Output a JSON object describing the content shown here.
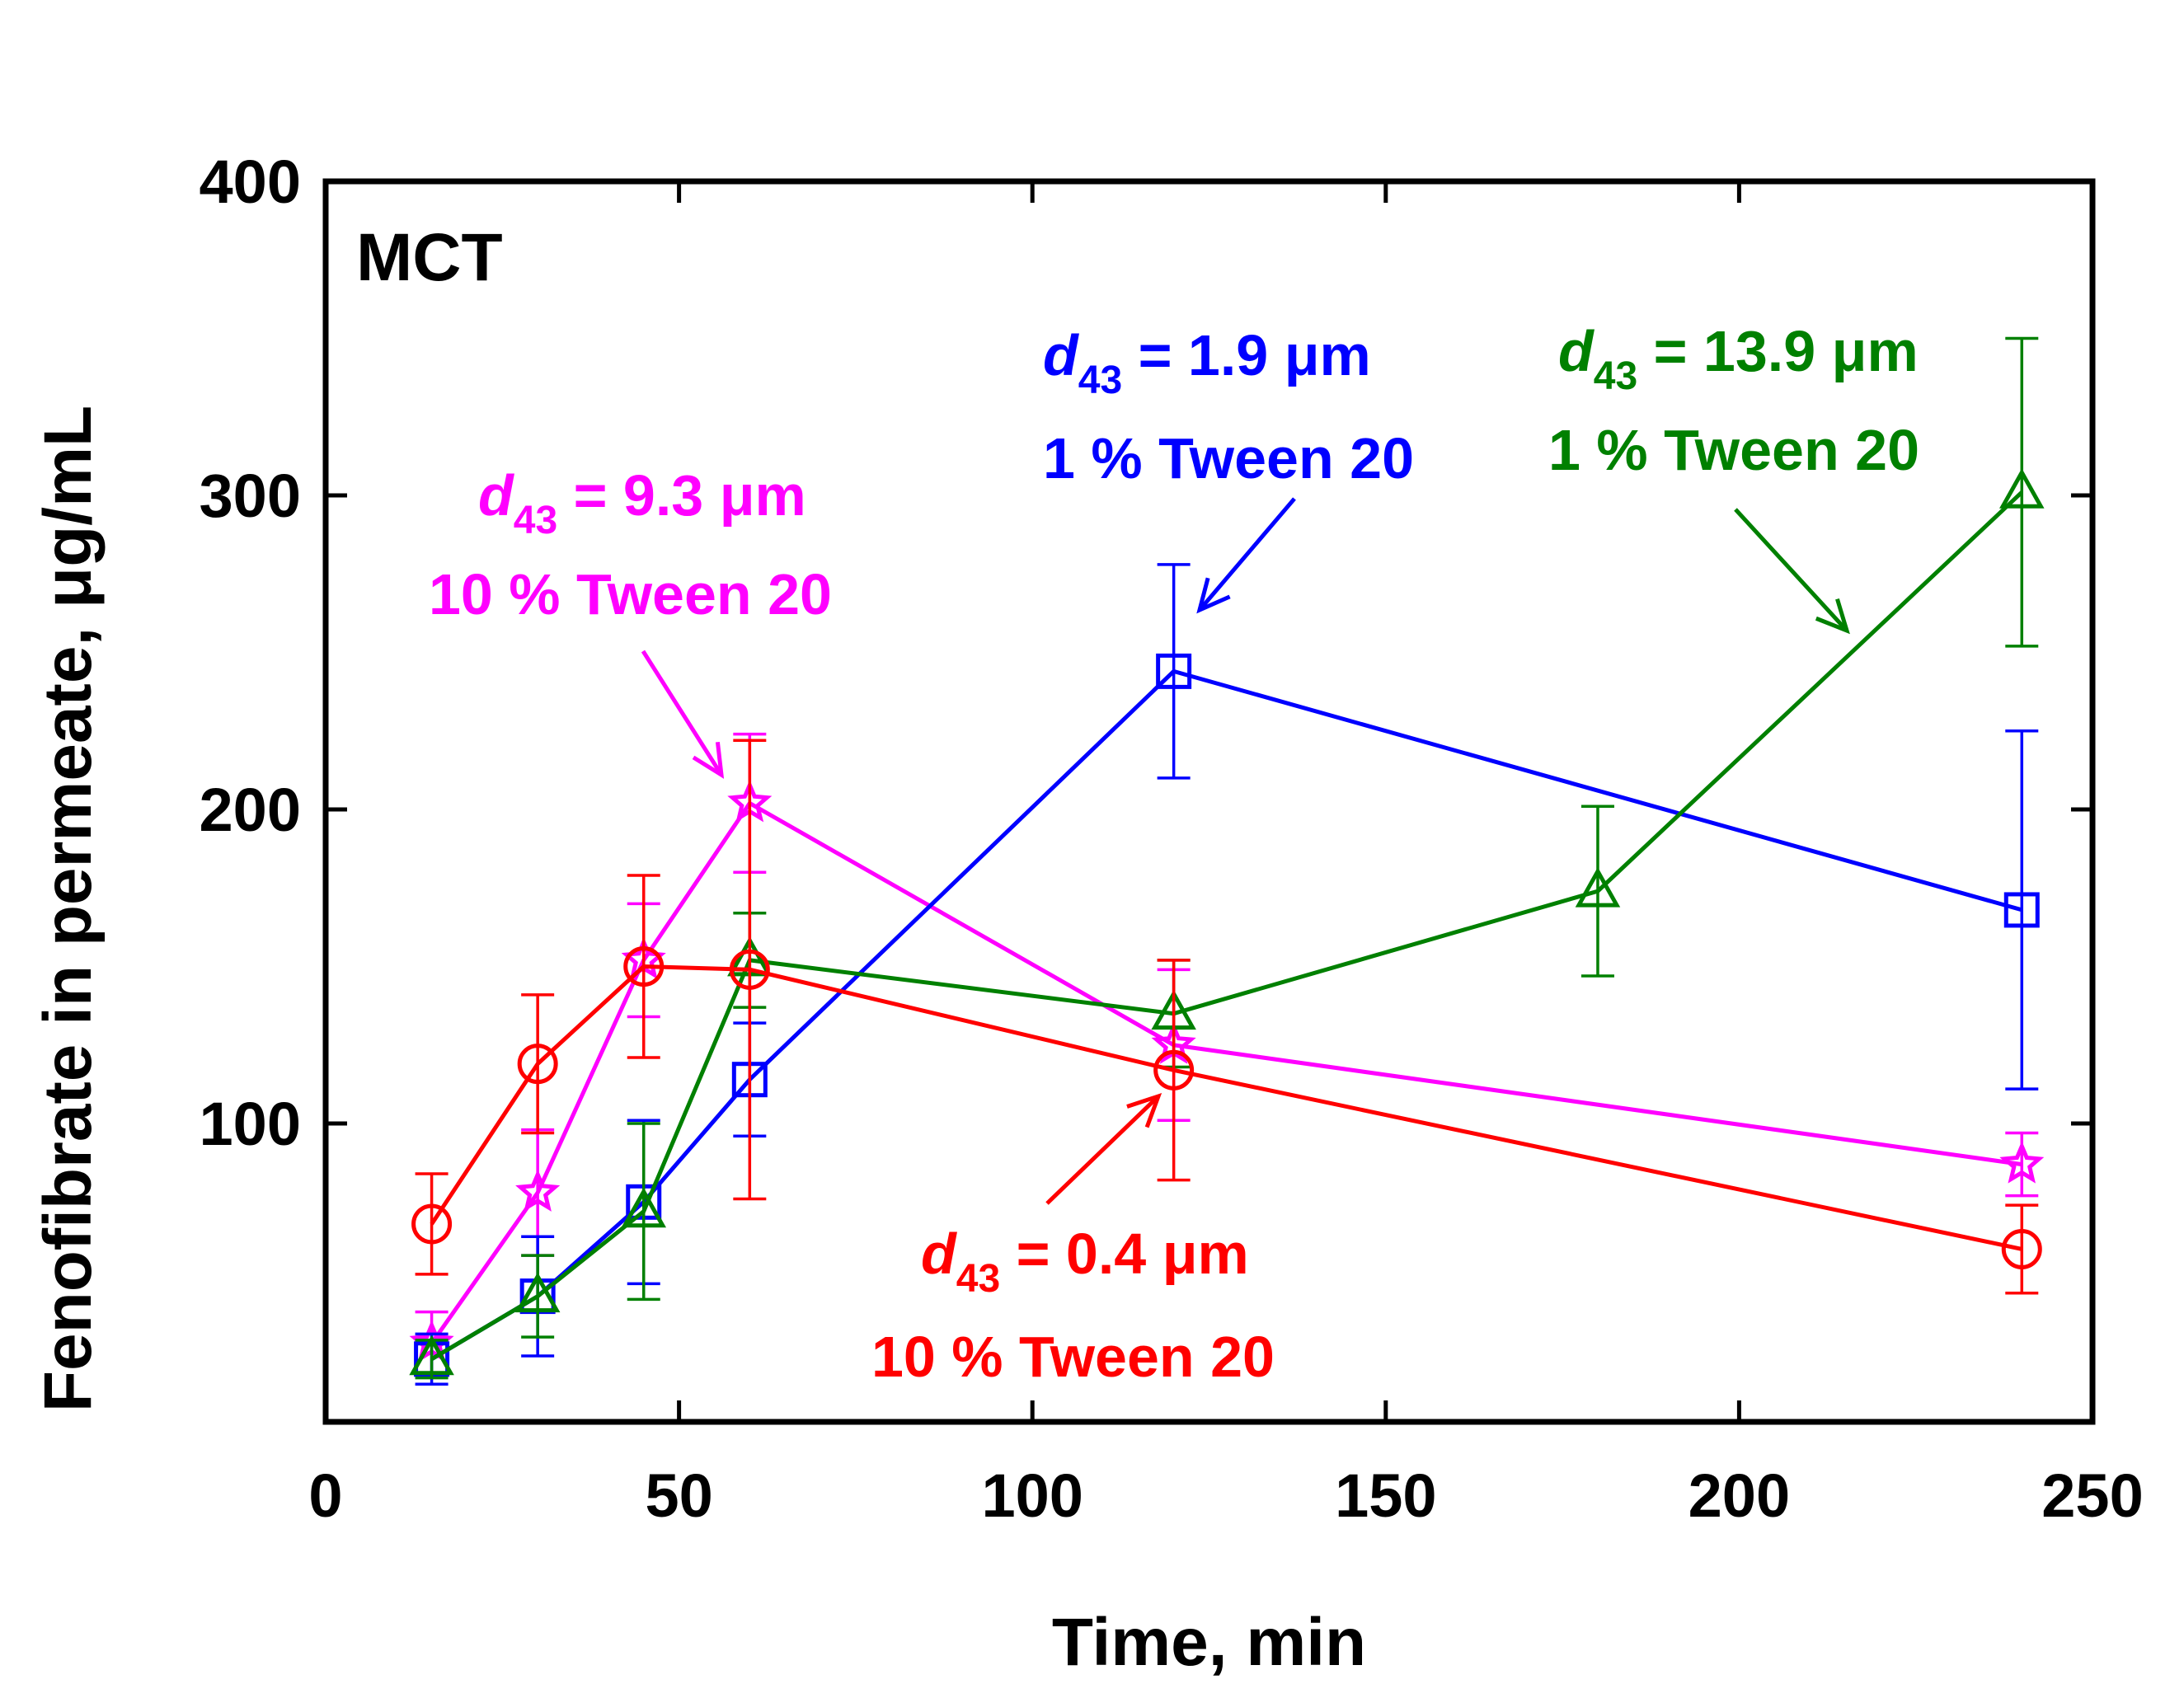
{
  "chart_data": {
    "type": "line",
    "panel_label": "MCT",
    "xlabel": "Time, min",
    "ylabel": "Fenofibrate in permeate, μg/mL",
    "xlim": [
      0,
      250
    ],
    "ylim": [
      5,
      400
    ],
    "xticks": [
      0,
      50,
      100,
      150,
      200,
      250
    ],
    "yticks": [
      100,
      200,
      300,
      400
    ],
    "series": [
      {
        "name": "d43 = 0.4 μm, 10 % Tween 20",
        "color": "#ff0000",
        "marker": "circle",
        "x": [
          15,
          30,
          45,
          60,
          120,
          240
        ],
        "y": [
          68,
          119,
          150,
          149,
          117,
          60
        ],
        "err": [
          16,
          22,
          29,
          73,
          35,
          14
        ]
      },
      {
        "name": "d43 = 9.3 μm, 10 % Tween 20",
        "color": "#ff00ff",
        "marker": "star",
        "x": [
          15,
          30,
          45,
          60,
          120,
          240
        ],
        "y": [
          30,
          78,
          152,
          202,
          125,
          87
        ],
        "err": [
          10,
          20,
          18,
          22,
          24,
          10
        ]
      },
      {
        "name": "d43 = 1.9 μm, 1 % Tween 20",
        "color": "#0000ff",
        "marker": "square",
        "x": [
          15,
          30,
          45,
          60,
          120,
          240
        ],
        "y": [
          25,
          45,
          75,
          114,
          244,
          168
        ],
        "err": [
          8,
          19,
          26,
          18,
          34,
          57
        ]
      },
      {
        "name": "d43 = 13.9 μm, 1 % Tween 20",
        "color": "#008000",
        "marker": "triangle",
        "x": [
          15,
          30,
          45,
          60,
          120,
          180,
          240
        ],
        "y": [
          25,
          45,
          72,
          152,
          135,
          174,
          301
        ],
        "err": [
          6,
          13,
          28,
          15,
          17,
          27,
          49
        ]
      }
    ],
    "annotations": [
      {
        "d": "d",
        "sub": "43",
        "value": " = 1.9 μm",
        "surfactant": "1 % Tween 20",
        "color": "#0000ff"
      },
      {
        "d": "d",
        "sub": "43",
        "value": " = 13.9 μm",
        "surfactant": "1 % Tween 20",
        "color": "#008000"
      },
      {
        "d": "d",
        "sub": "43",
        "value": " = 9.3 μm",
        "surfactant": "10 % Tween 20",
        "color": "#ff00ff"
      },
      {
        "d": "d",
        "sub": "43",
        "value": " = 0.4 μm",
        "surfactant": "10 % Tween 20",
        "color": "#ff0000"
      }
    ]
  }
}
